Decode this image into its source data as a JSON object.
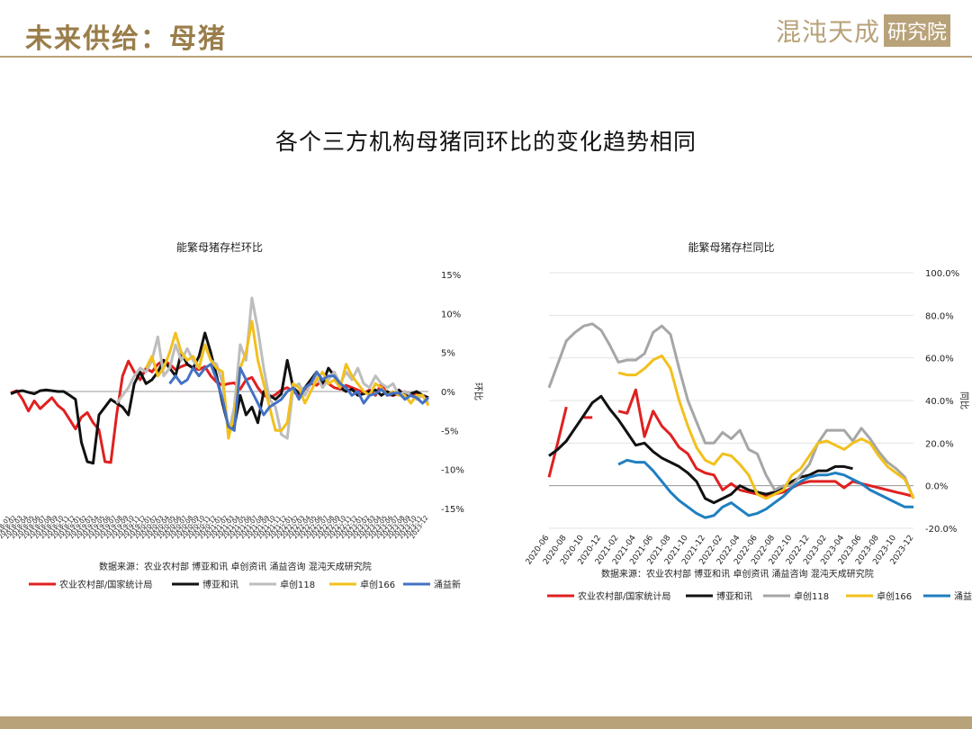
{
  "header": {
    "title": "未来供给：母猪",
    "logo_text": "混沌天成",
    "logo_stamp": "研究院"
  },
  "slide_title": "各个三方机构母猪同环比的变化趋势相同",
  "colors": {
    "accent": "#b8a27a",
    "series": [
      "#e02020",
      "#111111",
      "#bdbdbd",
      "#f2c01c",
      "#4472c4"
    ],
    "series_right": [
      "#e02020",
      "#111111",
      "#a6a6a6",
      "#f2c01c",
      "#1f7fc0"
    ]
  },
  "chart_data": [
    {
      "type": "line",
      "title": "能繁母猪存栏环比",
      "ylabel": "环比",
      "ylim": [
        -15,
        15
      ],
      "yticks": [
        "15%",
        "10%",
        "5%",
        "0%",
        "-5%",
        "-10%",
        "-15%"
      ],
      "yaxis_side": "right",
      "grid": false,
      "x": [
        "2018-01",
        "2018-02",
        "2018-03",
        "2018-04",
        "2018-05",
        "2018-06",
        "2018-07",
        "2018-08",
        "2018-09",
        "2018-10",
        "2018-11",
        "2018-12",
        "2019-01",
        "2019-02",
        "2019-03",
        "2019-04",
        "2019-05",
        "2019-06",
        "2019-07",
        "2019-08",
        "2019-09",
        "2019-10",
        "2019-11",
        "2019-12",
        "2020-01",
        "2020-02",
        "2020-03",
        "2020-04",
        "2020-05",
        "2020-06",
        "2020-07",
        "2020-08",
        "2020-09",
        "2020-10",
        "2020-11",
        "2020-12",
        "2021-01",
        "2021-02",
        "2021-03",
        "2021-04",
        "2021-05",
        "2021-06",
        "2021-07",
        "2021-08",
        "2021-09",
        "2021-10",
        "2021-11",
        "2021-12",
        "2022-01",
        "2022-02",
        "2022-03",
        "2022-04",
        "2022-05",
        "2022-06",
        "2022-07",
        "2022-08",
        "2022-09",
        "2022-10",
        "2022-11",
        "2022-12",
        "2023-01",
        "2023-02",
        "2023-03",
        "2023-04",
        "2023-05",
        "2023-06",
        "2023-07",
        "2023-08",
        "2023-09",
        "2023-10",
        "2023-11",
        "2023-12"
      ],
      "source": "数据来源：农业农村部 博亚和讯 卓创资讯 涌益咨询 混沌天成研究院",
      "series": [
        {
          "name": "农业农村部/国家统计局",
          "values": [
            -0.2,
            0.1,
            -1.0,
            -2.5,
            -1.2,
            -2.2,
            -1.5,
            -0.8,
            -1.8,
            -2.4,
            -3.6,
            -4.8,
            -3.3,
            -2.7,
            -4.0,
            -4.9,
            -9.0,
            -9.1,
            -3.0,
            2.0,
            3.9,
            2.5,
            1.5,
            3.0,
            2.5,
            3.5,
            4.0,
            3.5,
            2.8,
            3.2,
            3.5,
            3.0,
            2.8,
            3.2,
            2.0,
            1.2,
            0.8,
            1.0,
            1.1,
            0.3,
            1.5,
            1.8,
            0.5,
            -0.5,
            -0.8,
            -0.4,
            0.2,
            0.5,
            0.0,
            -0.5,
            0.3,
            1.0,
            0.8,
            1.5,
            1.0,
            0.5,
            0.3,
            0.8,
            0.5,
            0.2,
            -0.2,
            0.2,
            -0.5,
            1.0,
            -0.4,
            -0.5,
            -0.3,
            0.0,
            -0.5,
            -0.2,
            -0.5,
            -0.8
          ]
        },
        {
          "name": "博亚和讯",
          "values": [
            -0.3,
            0.0,
            0.1,
            -0.1,
            -0.3,
            0.1,
            0.2,
            0.1,
            0.0,
            0.0,
            -0.5,
            -1.0,
            -6.5,
            -9.0,
            -9.2,
            -3.0,
            -2.0,
            -1.0,
            -1.5,
            -2.0,
            -3.0,
            1.0,
            2.5,
            1.0,
            1.5,
            2.5,
            4.0,
            3.0,
            2.0,
            5.0,
            3.5,
            3.0,
            4.5,
            7.5,
            5.0,
            2.0,
            -1.5,
            -4.5,
            -4.5,
            -0.5,
            -3.0,
            -2.0,
            -4.0,
            0.0,
            -0.5,
            -1.0,
            -0.3,
            4.0,
            0.5,
            -0.2,
            0.5,
            1.5,
            2.5,
            1.0,
            3.0,
            2.0,
            0.5,
            0.0,
            0.3,
            -0.5,
            -0.3,
            0.0,
            0.2,
            -0.5,
            0.0,
            -0.5,
            0.2,
            -0.5,
            -0.3,
            0.0,
            -0.5,
            -0.8
          ]
        },
        {
          "name": "卓创118",
          "values": [
            null,
            null,
            null,
            null,
            null,
            null,
            null,
            null,
            null,
            null,
            null,
            null,
            null,
            null,
            null,
            null,
            null,
            null,
            -1.5,
            -0.5,
            0.5,
            2.0,
            3.0,
            2.5,
            4.0,
            7.0,
            2.0,
            3.0,
            6.0,
            4.0,
            5.5,
            4.0,
            3.0,
            6.0,
            4.0,
            3.5,
            1.0,
            -5.5,
            -2.0,
            6.0,
            4.0,
            12.0,
            8.0,
            3.0,
            -1.0,
            -2.0,
            -5.5,
            -6.0,
            0.5,
            1.0,
            -0.5,
            1.0,
            2.0,
            0.5,
            1.5,
            2.5,
            1.0,
            2.5,
            1.5,
            3.0,
            1.0,
            0.5,
            2.0,
            1.0,
            0.5,
            1.0,
            -0.5,
            0.0,
            -0.5,
            -1.0,
            -0.5,
            -1.5
          ]
        },
        {
          "name": "卓创166",
          "values": [
            null,
            null,
            null,
            null,
            null,
            null,
            null,
            null,
            null,
            null,
            null,
            null,
            null,
            null,
            null,
            null,
            null,
            null,
            null,
            null,
            null,
            null,
            null,
            3.0,
            4.5,
            2.0,
            3.0,
            5.0,
            7.5,
            5.0,
            4.0,
            4.5,
            3.0,
            6.0,
            4.0,
            3.0,
            2.5,
            -6.0,
            -3.0,
            3.0,
            5.0,
            9.0,
            4.0,
            1.0,
            -2.0,
            -5.0,
            -5.0,
            -4.0,
            1.0,
            0.5,
            -1.5,
            0.0,
            1.5,
            2.5,
            1.0,
            1.5,
            0.5,
            3.5,
            2.0,
            1.0,
            0.0,
            -0.5,
            1.0,
            0.5,
            -0.5,
            0.0,
            -0.5,
            -0.5,
            -1.5,
            -0.5,
            -0.5,
            -1.8
          ]
        },
        {
          "name": "涌益新",
          "values": [
            null,
            null,
            null,
            null,
            null,
            null,
            null,
            null,
            null,
            null,
            null,
            null,
            null,
            null,
            null,
            null,
            null,
            null,
            null,
            null,
            null,
            null,
            null,
            null,
            null,
            null,
            null,
            1.0,
            2.0,
            1.0,
            1.5,
            3.0,
            2.0,
            3.0,
            3.5,
            1.5,
            -1.0,
            -4.5,
            -5.0,
            3.0,
            1.5,
            0.0,
            -1.5,
            -3.0,
            -2.0,
            -1.5,
            -1.0,
            0.0,
            0.5,
            -1.0,
            0.5,
            1.0,
            2.5,
            1.5,
            2.0,
            2.0,
            1.0,
            0.5,
            -0.5,
            0.0,
            -1.5,
            -0.5,
            -0.3,
            0.3,
            -0.5,
            -0.2,
            -0.2,
            -1.0,
            -0.5,
            -0.8,
            -1.5,
            -0.8
          ]
        }
      ]
    },
    {
      "type": "line",
      "title": "能繁母猪存栏同比",
      "ylabel": "同比",
      "ylim": [
        -20,
        100
      ],
      "yticks": [
        "100.0%",
        "80.0%",
        "60.0%",
        "40.0%",
        "20.0%",
        "0.0%",
        "-20.0%"
      ],
      "yaxis_side": "right",
      "grid": true,
      "x": [
        "2020-06",
        "2020-07",
        "2020-08",
        "2020-09",
        "2020-10",
        "2020-11",
        "2020-12",
        "2021-01",
        "2021-02",
        "2021-03",
        "2021-04",
        "2021-05",
        "2021-06",
        "2021-07",
        "2021-08",
        "2021-09",
        "2021-10",
        "2021-11",
        "2021-12",
        "2022-01",
        "2022-02",
        "2022-03",
        "2022-04",
        "2022-05",
        "2022-06",
        "2022-07",
        "2022-08",
        "2022-09",
        "2022-10",
        "2022-11",
        "2022-12",
        "2023-01",
        "2023-02",
        "2023-03",
        "2023-04",
        "2023-05",
        "2023-06",
        "2023-07",
        "2023-08",
        "2023-09",
        "2023-10",
        "2023-11",
        "2023-12"
      ],
      "xticks": [
        "2020-06",
        "2020-08",
        "2020-10",
        "2020-12",
        "2021-02",
        "2021-04",
        "2021-06",
        "2021-08",
        "2021-10",
        "2021-12",
        "2022-02",
        "2022-04",
        "2022-06",
        "2022-08",
        "2022-10",
        "2022-12",
        "2023-02",
        "2023-04",
        "2023-06",
        "2023-08",
        "2023-10",
        "2023-12"
      ],
      "source": "数据来源：农业农村部 博亚和讯 卓创资讯 涌益咨询 混沌天成研究院",
      "series": [
        {
          "name": "农业农村部/国家统计局",
          "values": [
            4,
            20,
            37,
            null,
            32,
            32,
            null,
            null,
            35,
            34,
            45,
            23,
            35,
            28,
            24,
            18,
            15,
            8,
            6,
            5,
            -2,
            1,
            -2,
            -3,
            -4,
            -5,
            -4,
            -3,
            -1,
            1,
            2,
            2,
            2,
            2,
            -1,
            2,
            1,
            0,
            -1,
            -2,
            -3,
            -4,
            -5
          ]
        },
        {
          "name": "博亚和讯",
          "values": [
            14,
            17,
            21,
            27,
            33,
            39,
            42,
            36,
            31,
            25,
            19,
            20,
            16,
            13,
            11,
            9,
            6,
            2,
            -6,
            -8,
            -6,
            -4,
            0,
            -2,
            -3,
            -4,
            -3,
            -1,
            2,
            4,
            5,
            7,
            7,
            9,
            9,
            8,
            null,
            null,
            null,
            null,
            null,
            null,
            null
          ]
        },
        {
          "name": "卓创118",
          "values": [
            46,
            57,
            68,
            72,
            75,
            76,
            73,
            66,
            58,
            59,
            59,
            62,
            72,
            75,
            71,
            55,
            40,
            30,
            20,
            20,
            25,
            22,
            26,
            17,
            15,
            5,
            -2,
            0,
            0,
            5,
            10,
            20,
            26,
            26,
            26,
            21,
            27,
            22,
            16,
            11,
            8,
            4,
            -6
          ]
        },
        {
          "name": "卓创166",
          "values": [
            null,
            null,
            null,
            null,
            null,
            null,
            null,
            null,
            53,
            52,
            52,
            55,
            59,
            61,
            55,
            40,
            28,
            18,
            12,
            10,
            15,
            14,
            10,
            5,
            -4,
            -6,
            -4,
            -2,
            5,
            8,
            14,
            20,
            21,
            19,
            17,
            20,
            22,
            20,
            14,
            9,
            6,
            3,
            -6
          ]
        },
        {
          "name": "涌益新",
          "values": [
            null,
            null,
            null,
            null,
            null,
            null,
            null,
            null,
            10,
            12,
            11,
            11,
            7,
            2,
            -3,
            -7,
            -10,
            -13,
            -15,
            -14,
            -10,
            -8,
            -11,
            -14,
            -13,
            -11,
            -8,
            -5,
            -1,
            2,
            4,
            5,
            5,
            6,
            5,
            3,
            1,
            -2,
            -4,
            -6,
            -8,
            -10,
            -10
          ]
        }
      ]
    }
  ]
}
